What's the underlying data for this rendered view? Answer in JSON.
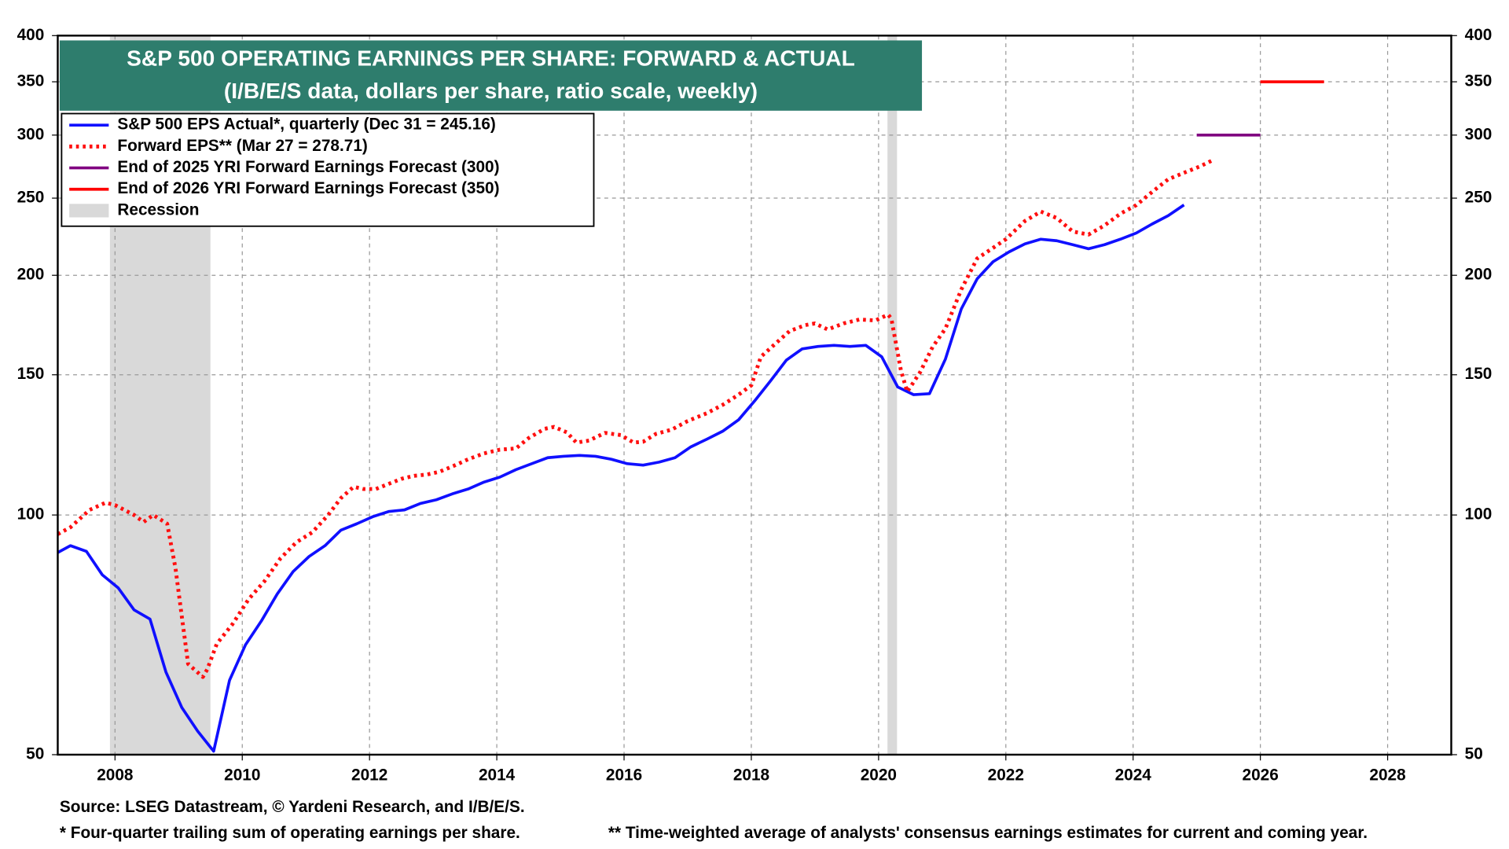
{
  "chart_data": {
    "type": "line",
    "title": "S&P 500 OPERATING EARNINGS PER SHARE: FORWARD & ACTUAL",
    "subtitle": "(I/B/E/S data, dollars per share, ratio scale, weekly)",
    "log_scale": true,
    "grid": true,
    "legend": "top-left",
    "xlim": [
      2007.1,
      2029.0
    ],
    "xticks": [
      2008,
      2010,
      2012,
      2014,
      2016,
      2018,
      2020,
      2022,
      2024,
      2026,
      2028
    ],
    "ylim": [
      50,
      400
    ],
    "yticks": [
      50,
      100,
      150,
      200,
      250,
      300,
      350,
      400
    ],
    "series": [
      {
        "name": "S&P 500 EPS Actual*, quarterly (Dec 31 = 245.16)",
        "color": "#1010ff",
        "style": "solid",
        "x": [
          2007.1,
          2007.3,
          2007.55,
          2007.8,
          2008.05,
          2008.3,
          2008.55,
          2008.8,
          2009.05,
          2009.3,
          2009.55,
          2009.8,
          2010.05,
          2010.3,
          2010.55,
          2010.8,
          2011.05,
          2011.3,
          2011.55,
          2011.8,
          2012.05,
          2012.3,
          2012.55,
          2012.8,
          2013.05,
          2013.3,
          2013.55,
          2013.8,
          2014.05,
          2014.3,
          2014.55,
          2014.8,
          2015.05,
          2015.3,
          2015.55,
          2015.8,
          2016.05,
          2016.3,
          2016.55,
          2016.8,
          2017.05,
          2017.3,
          2017.55,
          2017.8,
          2018.05,
          2018.3,
          2018.55,
          2018.8,
          2019.05,
          2019.3,
          2019.55,
          2019.8,
          2020.05,
          2020.3,
          2020.55,
          2020.8,
          2021.05,
          2021.3,
          2021.55,
          2021.8,
          2022.05,
          2022.3,
          2022.55,
          2022.8,
          2023.05,
          2023.3,
          2023.55,
          2023.8,
          2024.05,
          2024.3,
          2024.55,
          2024.8
        ],
        "values": [
          89.7,
          91.5,
          90.0,
          84.1,
          81.0,
          76.0,
          74.0,
          63.5,
          57.3,
          53.5,
          50.5,
          62.0,
          68.7,
          73.6,
          79.6,
          84.9,
          88.7,
          91.5,
          95.7,
          97.5,
          99.5,
          101.0,
          101.5,
          103.4,
          104.5,
          106.3,
          107.8,
          110.0,
          111.6,
          114.0,
          116.0,
          118.0,
          118.5,
          118.8,
          118.5,
          117.5,
          116.0,
          115.5,
          116.5,
          118.0,
          121.8,
          124.5,
          127.4,
          131.7,
          139.0,
          147.3,
          156.5,
          161.7,
          162.8,
          163.3,
          162.8,
          163.3,
          158.0,
          144.8,
          141.6,
          142.0,
          157.0,
          181.5,
          198.0,
          208.0,
          214.0,
          219.0,
          222.0,
          221.0,
          218.5,
          216.0,
          218.5,
          222.0,
          226.0,
          232.0,
          237.6,
          245.16
        ]
      },
      {
        "name": "Forward EPS** (Mar 27 = 278.71)",
        "color": "#ff1010",
        "style": "dotted",
        "x": [
          2007.1,
          2007.3,
          2007.6,
          2007.85,
          2008.0,
          2008.3,
          2008.45,
          2008.6,
          2008.82,
          2008.95,
          2009.05,
          2009.15,
          2009.38,
          2009.45,
          2009.6,
          2009.85,
          2010.1,
          2010.35,
          2010.6,
          2010.85,
          2011.1,
          2011.35,
          2011.55,
          2011.75,
          2011.9,
          2012.1,
          2012.35,
          2012.5,
          2012.7,
          2012.9,
          2013.1,
          2013.35,
          2013.55,
          2013.8,
          2014.05,
          2014.3,
          2014.5,
          2014.75,
          2014.9,
          2015.1,
          2015.25,
          2015.45,
          2015.7,
          2015.95,
          2016.15,
          2016.3,
          2016.5,
          2016.75,
          2017.0,
          2017.3,
          2017.55,
          2017.8,
          2018.0,
          2018.15,
          2018.4,
          2018.6,
          2018.85,
          2019.0,
          2019.2,
          2019.45,
          2019.7,
          2019.95,
          2020.15,
          2020.2,
          2020.35,
          2020.45,
          2020.65,
          2020.85,
          2021.05,
          2021.3,
          2021.55,
          2021.8,
          2022.0,
          2022.3,
          2022.55,
          2022.8,
          2023.05,
          2023.3,
          2023.55,
          2023.8,
          2024.05,
          2024.3,
          2024.55,
          2024.8,
          2025.05,
          2025.24
        ],
        "values": [
          94.6,
          96.5,
          101.5,
          103.6,
          102.9,
          100.0,
          98.0,
          100.0,
          97.5,
          85.8,
          74.6,
          65.0,
          62.6,
          64.0,
          68.9,
          73.0,
          78.4,
          82.6,
          88.2,
          92.4,
          95.1,
          100.0,
          105.0,
          108.5,
          107.8,
          107.8,
          109.8,
          111.0,
          112.0,
          112.4,
          113.3,
          115.5,
          117.5,
          119.5,
          120.8,
          121.2,
          124.9,
          128.3,
          129.0,
          127.0,
          123.3,
          124.0,
          126.8,
          126.0,
          123.3,
          123.6,
          126.4,
          128.0,
          131.2,
          134.2,
          137.5,
          141.6,
          145.5,
          158.0,
          164.7,
          170.2,
          173.2,
          174.0,
          171.0,
          174.0,
          176.0,
          175.5,
          178.5,
          176.5,
          152.0,
          142.8,
          151.0,
          162.6,
          171.4,
          192.0,
          210.0,
          216.5,
          222.0,
          234.0,
          240.5,
          236.0,
          227.0,
          225.0,
          231.0,
          239.0,
          245.0,
          254.5,
          264.0,
          269.0,
          274.0,
          278.71
        ]
      },
      {
        "name": "End of 2025 YRI Forward Earnings Forecast (300)",
        "color": "#800080",
        "style": "solid",
        "x": [
          2025.0,
          2026.0
        ],
        "values": [
          300,
          300
        ]
      },
      {
        "name": "End of 2026 YRI Forward Earnings Forecast (350)",
        "color": "#ff0000",
        "style": "solid",
        "x": [
          2026.0,
          2027.0
        ],
        "values": [
          350,
          350
        ]
      }
    ],
    "recession": {
      "name": "Recession",
      "color": "#d9d9d9",
      "spans": [
        [
          2007.92,
          2009.5
        ],
        [
          2020.14,
          2020.29
        ]
      ]
    },
    "notes": [
      "Source: LSEG Datastream, © Yardeni Research, and I/B/E/S.",
      "* Four-quarter trailing sum of operating earnings per share.",
      "** Time-weighted average of analysts' consensus earnings estimates for current and coming year."
    ]
  }
}
